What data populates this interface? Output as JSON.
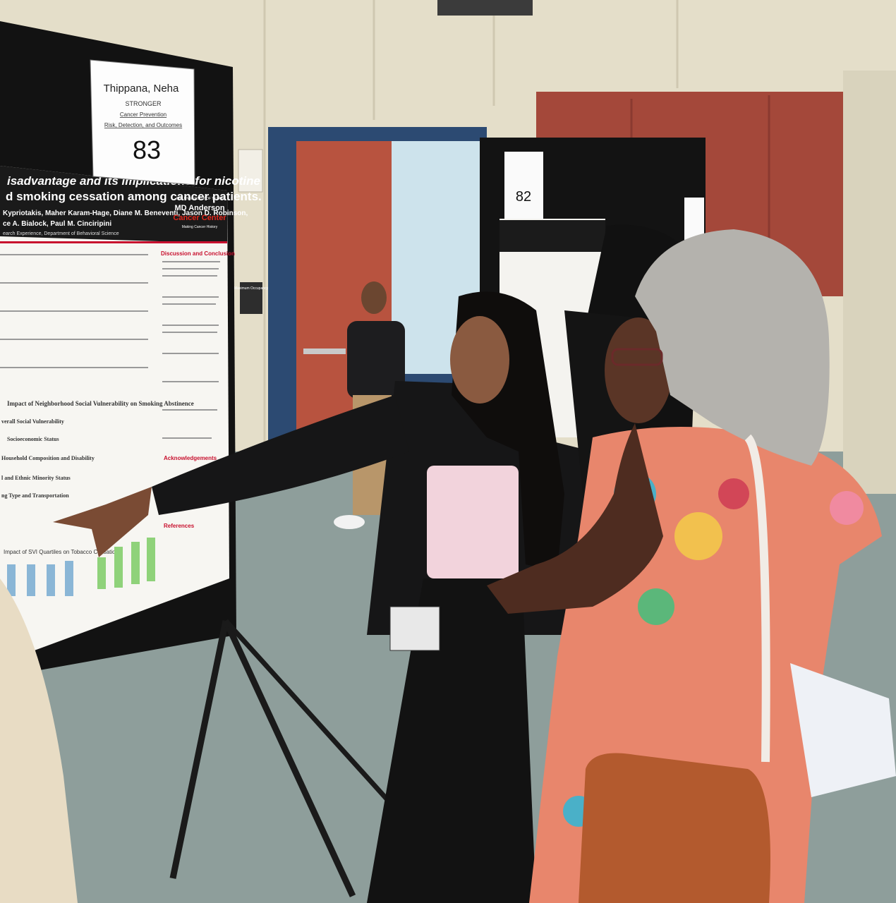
{
  "poster_83": {
    "label_card": {
      "name": "Thippana, Neha",
      "program": "STRONGER",
      "track_line1": "Cancer Prevention",
      "track_line2": "Risk, Detection, and Outcomes",
      "number": "83"
    },
    "title_line1": "isadvantage and its implications for nicotine",
    "title_line2": "d smoking cessation among cancer patients.",
    "authors_line1": "Kypriotakis, Maher Karam-Hage, Diane M. Beneventi, Jason D. Robinson,",
    "authors_line2": "ce A. Bialock, Paul M. Cinciripini",
    "affiliation": "earch Experience, Department of Behavioral Science",
    "logo": {
      "line1": "THE UNIVERSITY OF TEXAS",
      "line2": "MD Anderson",
      "line3": "Cancer Center",
      "line4": "Making Cancer History"
    },
    "discussion_heading": "Discussion and Conclusion",
    "acknowledgements_heading": "Acknowledgements",
    "references_heading": "References",
    "figure1_title": "Impact of Neighborhood Social Vulnerability on Smoking Abstinence",
    "forest_labels": [
      "verall Social Vulnerability",
      "Socioeconomic Status",
      "Household Composition and Disability",
      "l and Ethnic Minority Status",
      "ng Type and Transportation"
    ],
    "figure2_title": "Impact of SVI Quartiles on Tobacco Cessation"
  },
  "poster_82": {
    "number": "82"
  },
  "door_sign": "Maximum Occupancy"
}
